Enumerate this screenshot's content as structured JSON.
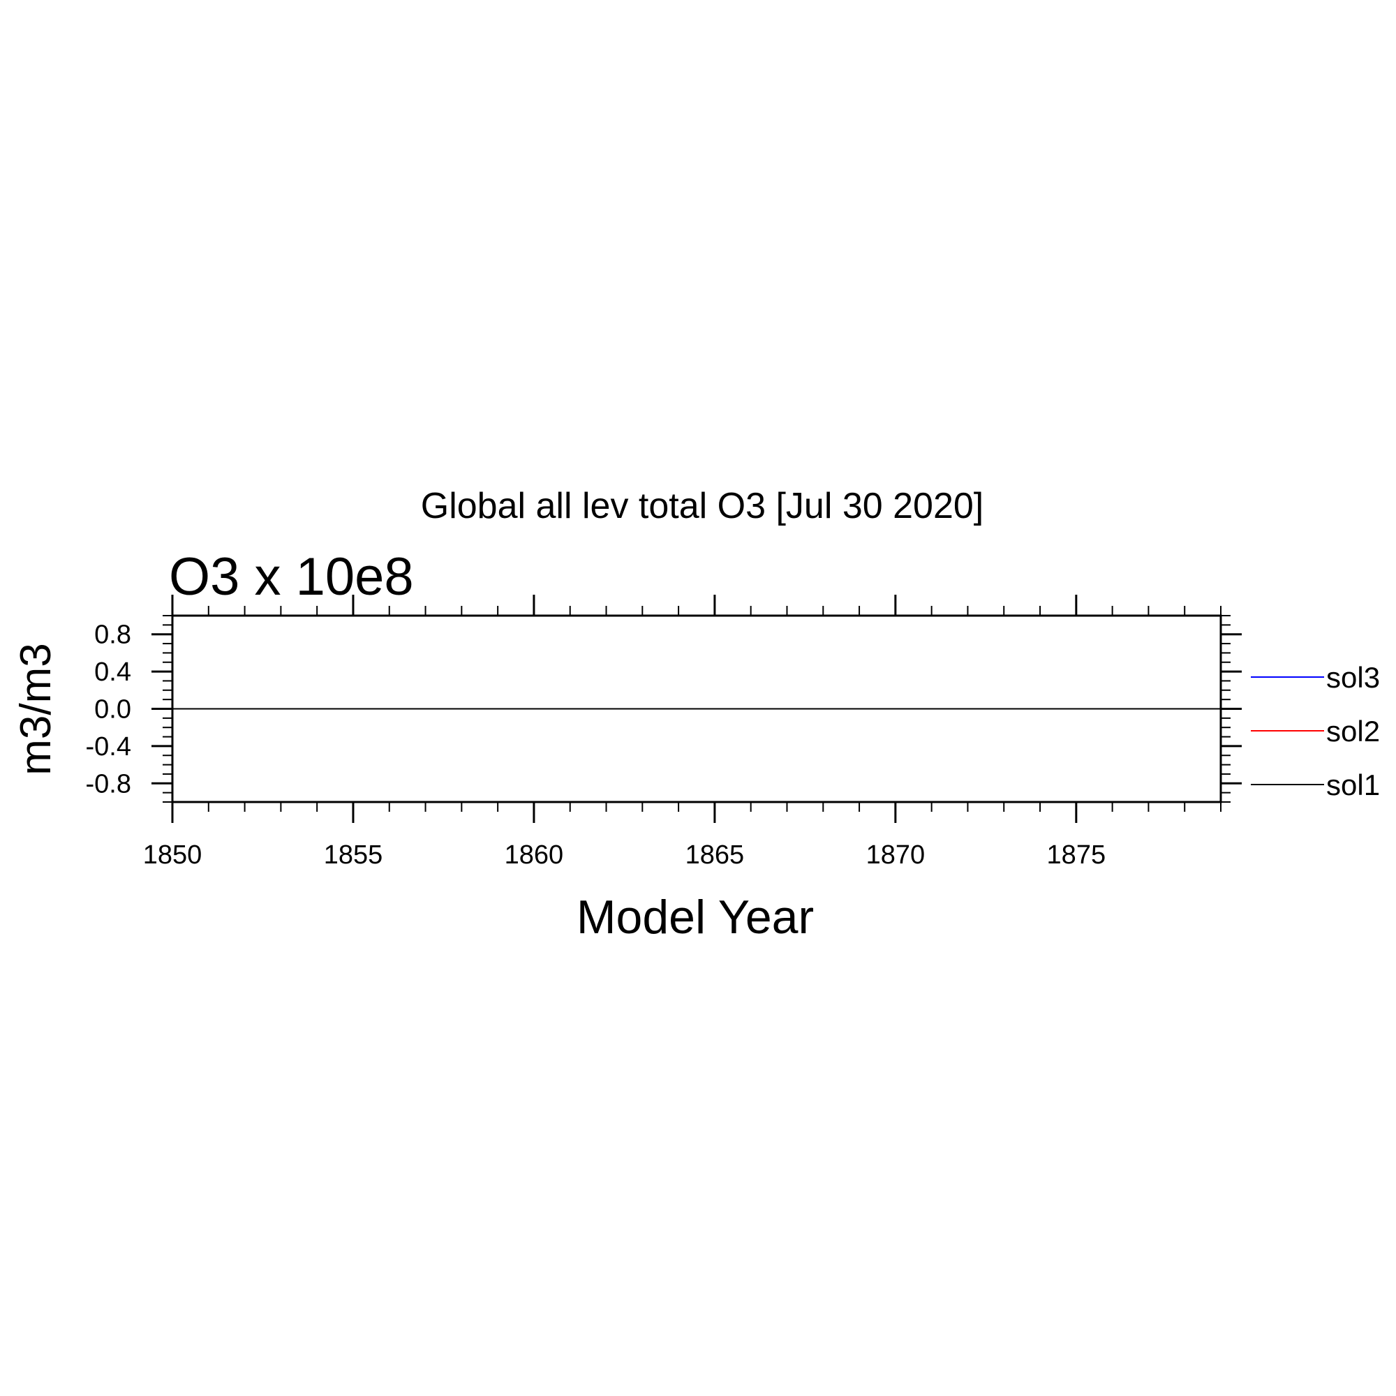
{
  "chart_data": {
    "type": "line",
    "title": "Global all lev total O3 [Jul 30 2020]",
    "subtitle": "O3 x 10e8",
    "xlabel": "Model Year",
    "ylabel": "m3/m3",
    "xlim": [
      1850,
      1879
    ],
    "ylim": [
      -1.0,
      1.0
    ],
    "x_ticks": [
      1850,
      1855,
      1860,
      1865,
      1870,
      1875
    ],
    "x_tick_labels": [
      "1850",
      "1855",
      "1860",
      "1865",
      "1870",
      "1875"
    ],
    "x_minor_step": 1,
    "y_ticks": [
      -0.8,
      -0.4,
      0.0,
      0.4,
      0.8
    ],
    "y_tick_labels": [
      "-0.8",
      "-0.4",
      "0.0",
      "0.4",
      "0.8"
    ],
    "y_minor_step": 0.1,
    "grid": false,
    "legend_position": "right",
    "series": [
      {
        "name": "sol1",
        "color": "#000000",
        "x": [
          1850,
          1879
        ],
        "y": [
          0.0,
          0.0
        ]
      },
      {
        "name": "sol2",
        "color": "#ff0000",
        "x": [],
        "y": []
      },
      {
        "name": "sol3",
        "color": "#0000ff",
        "x": [],
        "y": []
      }
    ],
    "legend_order": [
      "sol3",
      "sol2",
      "sol1"
    ]
  }
}
